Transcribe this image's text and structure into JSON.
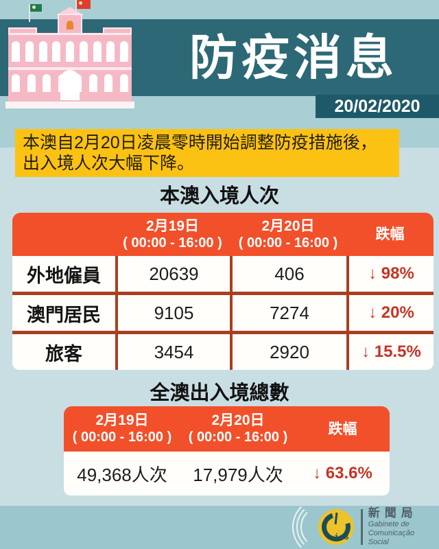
{
  "header": {
    "title": "防疫消息",
    "date": "20/02/2020"
  },
  "notice": {
    "line1": "本澳自2月20日凌晨零時開始調整防疫措施後，",
    "line2": "出入境人次大幅下降。"
  },
  "entry_table": {
    "section_title": "本澳入境人次",
    "header": {
      "date1": "2月19日",
      "time1": "( 00:00 - 16:00 )",
      "date2": "2月20日",
      "time2": "( 00:00 - 16:00 )",
      "drop": "跌幅"
    },
    "rows": [
      {
        "label": "外地僱員",
        "day1": "20639",
        "day2": "406",
        "drop": "↓ 98%"
      },
      {
        "label": "澳門居民",
        "day1": "9105",
        "day2": "7274",
        "drop": "↓ 20%"
      },
      {
        "label": "旅客",
        "day1": "3454",
        "day2": "2920",
        "drop": "↓ 15.5%"
      }
    ]
  },
  "total_table": {
    "section_title": "全澳出入境總數",
    "header": {
      "date1": "2月19日",
      "time1": "( 00:00 - 16:00 )",
      "date2": "2月20日",
      "time2": "( 00:00 - 16:00 )",
      "drop": "跌幅"
    },
    "row": {
      "day1": "49,368人次",
      "day2": "17,979人次",
      "drop": "↓ 63.6%"
    }
  },
  "footer": {
    "logo_acronym": "ics",
    "org_name_zh": "新聞局",
    "org_name_pt_line1": "Gabinete de",
    "org_name_pt_line2": "Comunicação Social"
  },
  "colors": {
    "header_band": "#2d6876",
    "date_box": "#1d5968",
    "notice_yellow": "#fcc213",
    "table_header_orange": "#f2502a",
    "table_grid_red": "#a8401f",
    "drop_text_red": "#c43425",
    "page_bg_top": "#a9ced4",
    "page_bg_middle": "#c8dee2",
    "page_bg_footer": "#9bc6cd",
    "building_pink": "#f5b9c6"
  }
}
